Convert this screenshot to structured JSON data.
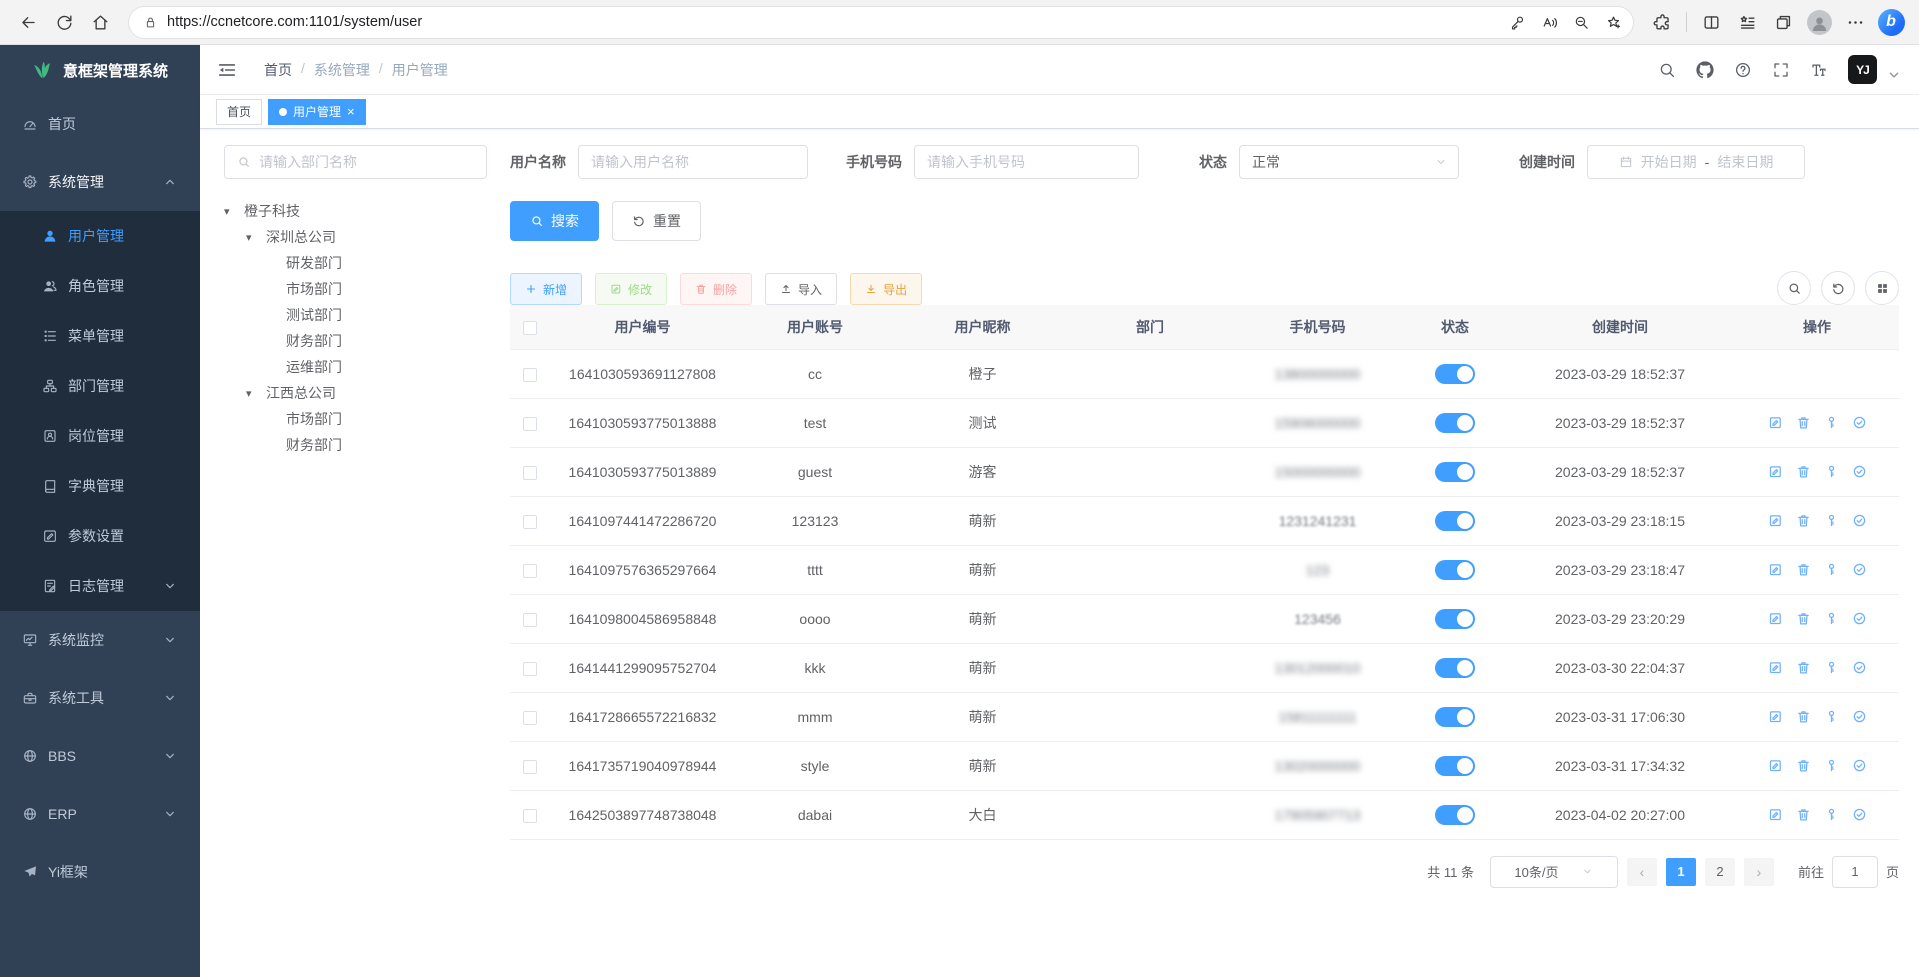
{
  "browser": {
    "url": "https://ccnetcore.com:1101/system/user"
  },
  "header": {
    "logo_text": "意框架管理系统",
    "breadcrumb": [
      "首页",
      "系统管理",
      "用户管理"
    ],
    "avatar_text": "YJ"
  },
  "tabs": [
    {
      "key": "home",
      "label": "首页",
      "active": false
    },
    {
      "key": "user-mgmt",
      "label": "用户管理",
      "active": true
    }
  ],
  "sidebar_menu": [
    {
      "key": "home",
      "label": "首页",
      "icon": "dashboard",
      "level": 1
    },
    {
      "key": "system-mgmt",
      "label": "系统管理",
      "icon": "gear",
      "level": 1,
      "arrow": "up",
      "expanded": true
    },
    {
      "key": "user-mgmt",
      "label": "用户管理",
      "icon": "user",
      "level": 2,
      "active": true
    },
    {
      "key": "role-mgmt",
      "label": "角色管理",
      "icon": "role",
      "level": 2
    },
    {
      "key": "menu-mgmt",
      "label": "菜单管理",
      "icon": "menulist",
      "level": 2
    },
    {
      "key": "dept-mgmt",
      "label": "部门管理",
      "icon": "dept",
      "level": 2
    },
    {
      "key": "post-mgmt",
      "label": "岗位管理",
      "icon": "post",
      "level": 2
    },
    {
      "key": "dict-mgmt",
      "label": "字典管理",
      "icon": "dict",
      "level": 2
    },
    {
      "key": "param-settings",
      "label": "参数设置",
      "icon": "param",
      "level": 2
    },
    {
      "key": "log-mgmt",
      "label": "日志管理",
      "icon": "log",
      "level": 2,
      "arrow": "down"
    },
    {
      "key": "system-monitor",
      "label": "系统监控",
      "icon": "monitor",
      "level": 1,
      "arrow": "down"
    },
    {
      "key": "system-tools",
      "label": "系统工具",
      "icon": "toolbox",
      "level": 1,
      "arrow": "down"
    },
    {
      "key": "bbs",
      "label": "BBS",
      "icon": "globe",
      "level": 1,
      "arrow": "down"
    },
    {
      "key": "erp",
      "label": "ERP",
      "icon": "globe",
      "level": 1,
      "arrow": "down"
    },
    {
      "key": "yi-framework",
      "label": "Yi框架",
      "icon": "plane",
      "level": 1
    }
  ],
  "filters": {
    "dept_placeholder": "请输入部门名称",
    "username_label": "用户名称",
    "username_placeholder": "请输入用户名称",
    "phone_label": "手机号码",
    "phone_placeholder": "请输入手机号码",
    "status_label": "状态",
    "status_value": "正常",
    "date_label": "创建时间",
    "date_start": "开始日期",
    "date_sep": "-",
    "date_end": "结束日期",
    "search_label": "搜索",
    "reset_label": "重置"
  },
  "tree": [
    {
      "key": "chengzi-keji",
      "label": "橙子科技",
      "level": 0,
      "expandable": true
    },
    {
      "key": "shenzhen-hq",
      "label": "深圳总公司",
      "level": 1,
      "expandable": true
    },
    {
      "key": "rd-dept",
      "label": "研发部门",
      "level": 2
    },
    {
      "key": "market-dept-sz",
      "label": "市场部门",
      "level": 2
    },
    {
      "key": "test-dept",
      "label": "测试部门",
      "level": 2
    },
    {
      "key": "finance-dept-sz",
      "label": "财务部门",
      "level": 2
    },
    {
      "key": "ops-dept",
      "label": "运维部门",
      "level": 2
    },
    {
      "key": "jiangxi-hq",
      "label": "江西总公司",
      "level": 1,
      "expandable": true
    },
    {
      "key": "market-dept-jx",
      "label": "市场部门",
      "level": 2
    },
    {
      "key": "finance-dept-jx",
      "label": "财务部门",
      "level": 2
    }
  ],
  "toolbar": {
    "add_label": "新增",
    "edit_label": "修改",
    "delete_label": "删除",
    "import_label": "导入",
    "export_label": "导出"
  },
  "table": {
    "columns": [
      "用户编号",
      "用户账号",
      "用户昵称",
      "部门",
      "手机号码",
      "状态",
      "创建时间",
      "操作"
    ],
    "rows": [
      {
        "id": "1641030593691127808",
        "account": "cc",
        "nick": "橙子",
        "dept": "",
        "phone": "13800000000",
        "phone_blur": "heavy",
        "status": true,
        "created": "2023-03-29 18:52:37",
        "actions": false
      },
      {
        "id": "1641030593775013888",
        "account": "test",
        "nick": "测试",
        "dept": "",
        "phone": "15906000000",
        "phone_blur": "heavy",
        "status": true,
        "created": "2023-03-29 18:52:37",
        "actions": true
      },
      {
        "id": "1641030593775013889",
        "account": "guest",
        "nick": "游客",
        "dept": "",
        "phone": "15000000000",
        "phone_blur": "heavy",
        "status": true,
        "created": "2023-03-29 18:52:37",
        "actions": true
      },
      {
        "id": "1641097441472286720",
        "account": "123123",
        "nick": "萌新",
        "dept": "",
        "phone": "1231241231",
        "phone_blur": "light",
        "status": true,
        "created": "2023-03-29 23:18:15",
        "actions": true
      },
      {
        "id": "1641097576365297664",
        "account": "tttt",
        "nick": "萌新",
        "dept": "",
        "phone": "123",
        "phone_blur": "heavy",
        "status": true,
        "created": "2023-03-29 23:18:47",
        "actions": true
      },
      {
        "id": "1641098004586958848",
        "account": "oooo",
        "nick": "萌新",
        "dept": "",
        "phone": "123456",
        "phone_blur": "light",
        "status": true,
        "created": "2023-03-29 23:20:29",
        "actions": true
      },
      {
        "id": "1641441299095752704",
        "account": "kkk",
        "nick": "萌新",
        "dept": "",
        "phone": "13012000010",
        "phone_blur": "heavy",
        "status": true,
        "created": "2023-03-30 22:04:37",
        "actions": true
      },
      {
        "id": "1641728665572216832",
        "account": "mmm",
        "nick": "萌新",
        "dept": "",
        "phone": "15811111111",
        "phone_blur": "heavy",
        "status": true,
        "created": "2023-03-31 17:06:30",
        "actions": true
      },
      {
        "id": "1641735719040978944",
        "account": "style",
        "nick": "萌新",
        "dept": "",
        "phone": "13020000000",
        "phone_blur": "heavy",
        "status": true,
        "created": "2023-03-31 17:34:32",
        "actions": true
      },
      {
        "id": "1642503897748738048",
        "account": "dabai",
        "nick": "大白",
        "dept": "",
        "phone": "17905907713",
        "phone_blur": "heavy",
        "status": true,
        "created": "2023-04-02 20:27:00",
        "actions": true
      }
    ]
  },
  "pagination": {
    "total_label": "共 11 条",
    "page_size_label": "10条/页",
    "pages": [
      "1",
      "2"
    ],
    "active_page": "1",
    "goto_label": "前往",
    "goto_value": "1",
    "goto_unit": "页"
  }
}
